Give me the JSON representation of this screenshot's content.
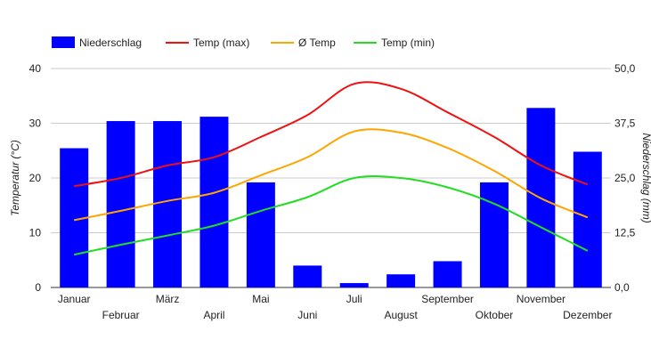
{
  "chart_data": {
    "type": "bar",
    "categories": [
      "Januar",
      "Februar",
      "März",
      "April",
      "Mai",
      "Juni",
      "Juli",
      "August",
      "September",
      "Oktober",
      "November",
      "Dezember"
    ],
    "bar_series": {
      "name": "Niederschlag",
      "color": "#0000ff",
      "axis": "right",
      "values": [
        31.8,
        38.0,
        38.0,
        39.0,
        24.0,
        5.0,
        1.0,
        3.0,
        6.0,
        24.0,
        41.0,
        31.0
      ]
    },
    "line_series": [
      {
        "name": "Temp (max)",
        "color": "#ee1111",
        "axis": "left",
        "values": [
          18.5,
          20.0,
          22.3,
          23.8,
          27.5,
          31.5,
          37.2,
          36.3,
          32.0,
          27.5,
          22.3,
          18.8
        ]
      },
      {
        "name": "Ø Temp",
        "color": "#ffa500",
        "axis": "left",
        "values": [
          12.3,
          14.0,
          15.8,
          17.3,
          20.5,
          23.8,
          28.5,
          28.3,
          25.5,
          21.3,
          16.3,
          12.8
        ]
      },
      {
        "name": "Temp (min)",
        "color": "#22dd22",
        "axis": "left",
        "values": [
          6.0,
          7.8,
          9.5,
          11.3,
          14.0,
          16.5,
          20.0,
          20.0,
          18.3,
          15.3,
          11.0,
          6.7
        ]
      }
    ],
    "y_left": {
      "label": "Temperatur (°C)",
      "min": 0,
      "max": 40,
      "ticks": [
        "0",
        "10",
        "20",
        "30",
        "40"
      ]
    },
    "y_right": {
      "label": "Niederschlag (mm)",
      "min": 0,
      "max": 50,
      "ticks": [
        "0,0",
        "12,5",
        "25,0",
        "37,5",
        "50,0"
      ]
    },
    "grid": true,
    "legend_position": "top-left"
  }
}
